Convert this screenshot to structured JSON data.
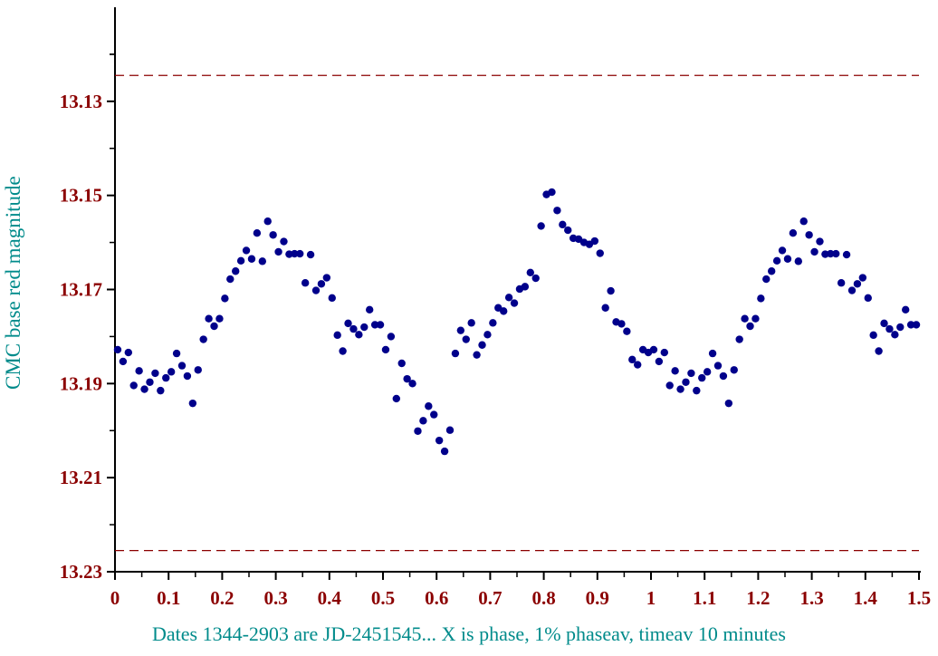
{
  "colors": {
    "tick_label": "#8b0000",
    "axis_title": "#008b8b",
    "point": "#00008b",
    "ref_line": "#8b0000",
    "axis": "#000000"
  },
  "chart_data": {
    "type": "scatter",
    "ylabel": "CMC base red magnitude",
    "xlabel": "Dates  1344-2903 are JD-2451545... X is phase, 1% phaseav, timeav  10 minutes",
    "xlim": [
      0,
      1.5
    ],
    "ylim": [
      13.23,
      13.11
    ],
    "y_inverted": true,
    "x_ticks": [
      "0",
      "0.1",
      "0.2",
      "0.3",
      "0.4",
      "0.5",
      "0.6",
      "0.7",
      "0.8",
      "0.9",
      "1",
      "1.1",
      "1.2",
      "1.3",
      "1.4",
      "1.5"
    ],
    "y_ticks": [
      "13.13",
      "13.15",
      "13.17",
      "13.19",
      "13.21",
      "13.23"
    ],
    "reference_lines_y": [
      13.1245,
      13.2255
    ],
    "series": [
      {
        "x": [
          0.005,
          0.015,
          0.025,
          0.035,
          0.045,
          0.055,
          0.065,
          0.075,
          0.085,
          0.095,
          0.105,
          0.115,
          0.125,
          0.135,
          0.145,
          0.155,
          0.165,
          0.175,
          0.185,
          0.195,
          0.205,
          0.215,
          0.225,
          0.235,
          0.245,
          0.255,
          0.265,
          0.275,
          0.285,
          0.295,
          0.305,
          0.315,
          0.325,
          0.335,
          0.345,
          0.355,
          0.365,
          0.375,
          0.385,
          0.395,
          0.405,
          0.415,
          0.425,
          0.435,
          0.445,
          0.455,
          0.465,
          0.475,
          0.485,
          0.495,
          0.505,
          0.515,
          0.525,
          0.535,
          0.545,
          0.555,
          0.565,
          0.575,
          0.585,
          0.595,
          0.605,
          0.615,
          0.625,
          0.635,
          0.645,
          0.655,
          0.665,
          0.675,
          0.685,
          0.695,
          0.705,
          0.715,
          0.725,
          0.735,
          0.745,
          0.755,
          0.765,
          0.775,
          0.785,
          0.795,
          0.805,
          0.815,
          0.825,
          0.835,
          0.845,
          0.855,
          0.865,
          0.875,
          0.885,
          0.895,
          0.905,
          0.915,
          0.925,
          0.935,
          0.945,
          0.955,
          0.965,
          0.975,
          0.985,
          0.995,
          1.005,
          1.015,
          1.025,
          1.035,
          1.045,
          1.055,
          1.065,
          1.075,
          1.085,
          1.095,
          1.105,
          1.115,
          1.125,
          1.135,
          1.145,
          1.155,
          1.165,
          1.175,
          1.185,
          1.195,
          1.205,
          1.215,
          1.225,
          1.235,
          1.245,
          1.255,
          1.265,
          1.275,
          1.285,
          1.295,
          1.305,
          1.315,
          1.325,
          1.335,
          1.345,
          1.355,
          1.365,
          1.375,
          1.385,
          1.395,
          1.405,
          1.415,
          1.425,
          1.435,
          1.445,
          1.455,
          1.465,
          1.475,
          1.485,
          1.495
        ],
        "y": [
          13.1828,
          13.1853,
          13.1834,
          13.1904,
          13.1873,
          13.1912,
          13.1897,
          13.1878,
          13.1915,
          13.1888,
          13.1875,
          13.1836,
          13.1862,
          13.1884,
          13.1942,
          13.1871,
          13.1806,
          13.1762,
          13.1778,
          13.1762,
          13.1719,
          13.1678,
          13.1661,
          13.1639,
          13.1617,
          13.1635,
          13.158,
          13.164,
          13.1555,
          13.1584,
          13.162,
          13.1598,
          13.1625,
          13.1624,
          13.1624,
          13.1686,
          13.1626,
          13.1702,
          13.1688,
          13.1675,
          13.1718,
          13.1797,
          13.1831,
          13.1772,
          13.1784,
          13.1796,
          13.178,
          13.1743,
          13.1775,
          13.1775,
          13.1828,
          13.18,
          13.1932,
          13.1857,
          13.189,
          13.19,
          13.2001,
          13.1979,
          13.1948,
          13.1966,
          13.2021,
          13.2044,
          13.1999,
          13.1836,
          13.1787,
          13.1806,
          13.1771,
          13.1839,
          13.1818,
          13.1796,
          13.1771,
          13.1739,
          13.1746,
          13.1717,
          13.1729,
          13.1699,
          13.1694,
          13.1664,
          13.1676,
          13.1565,
          13.1498,
          13.1493,
          13.1532,
          13.1562,
          13.1574,
          13.1591,
          13.1593,
          13.16,
          13.1604,
          13.1597,
          13.1623,
          13.1739,
          13.1703,
          13.1769,
          13.1773,
          13.1789,
          13.1849,
          13.186,
          13.1828,
          13.1834,
          13.1828,
          13.1853,
          13.1834,
          13.1904,
          13.1873,
          13.1912,
          13.1897,
          13.1878,
          13.1915,
          13.1888,
          13.1875,
          13.1836,
          13.1862,
          13.1884,
          13.1942,
          13.1871,
          13.1806,
          13.1762,
          13.1778,
          13.1762,
          13.1719,
          13.1678,
          13.1661,
          13.1639,
          13.1617,
          13.1635,
          13.158,
          13.164,
          13.1555,
          13.1584,
          13.162,
          13.1598,
          13.1625,
          13.1624,
          13.1624,
          13.1686,
          13.1626,
          13.1702,
          13.1688,
          13.1675,
          13.1718,
          13.1797,
          13.1831,
          13.1772,
          13.1784,
          13.1796,
          13.178,
          13.1743,
          13.1775,
          13.1775
        ]
      }
    ]
  }
}
